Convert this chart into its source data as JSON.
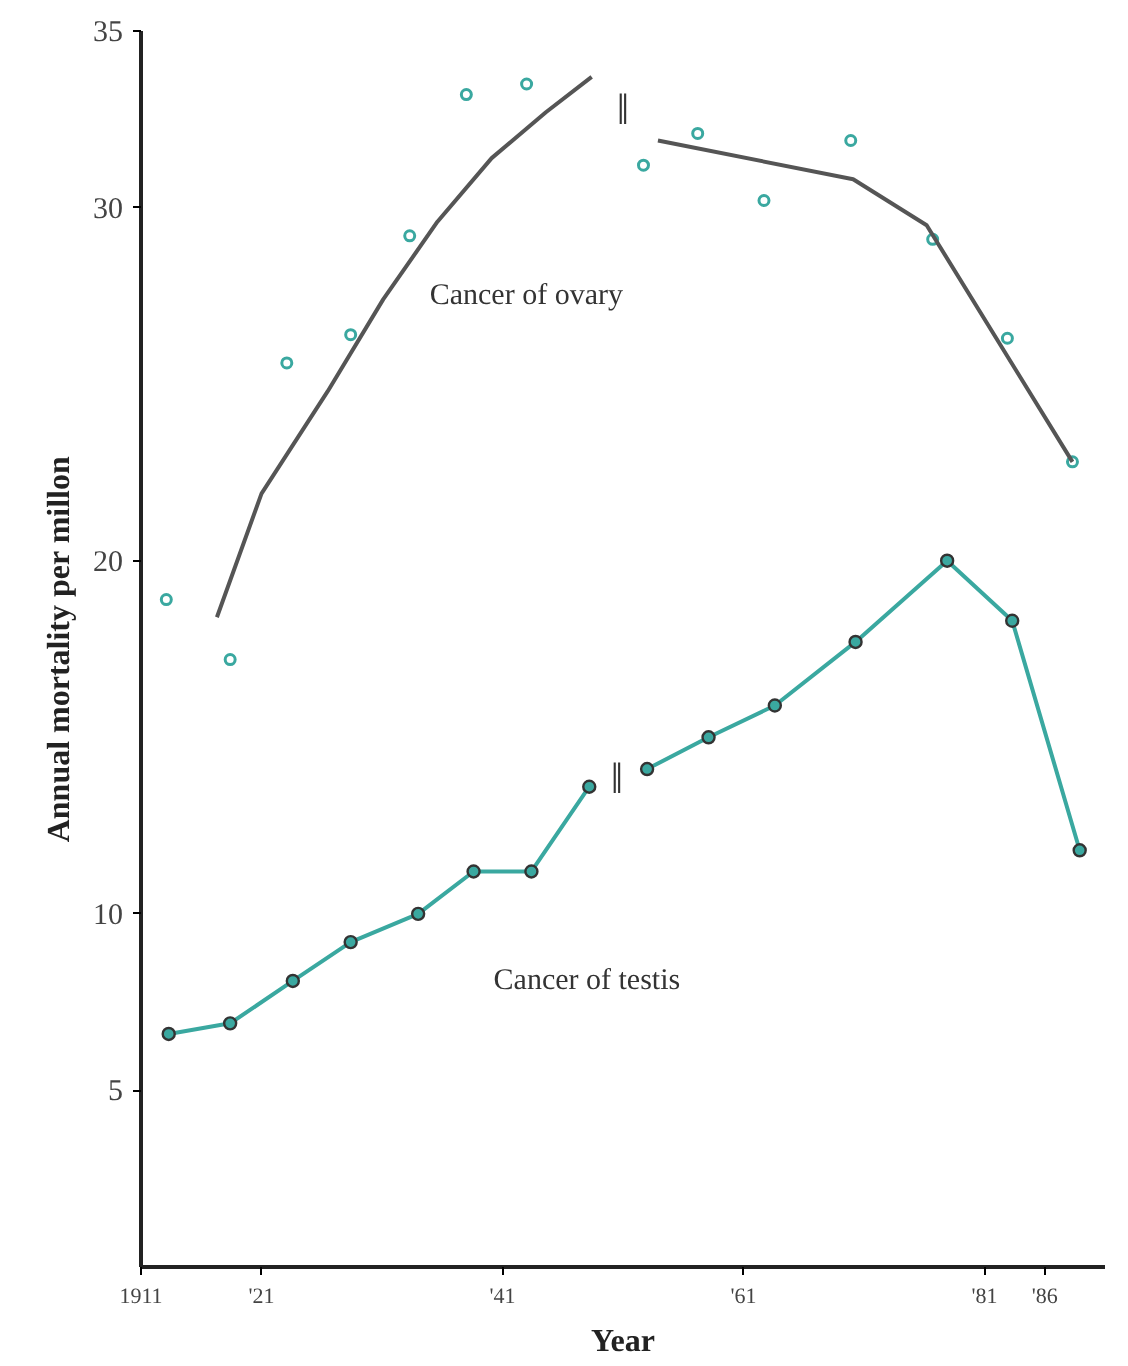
{
  "chart_data": {
    "type": "line",
    "xlabel": "Year",
    "ylabel": "Annual mortality per millon",
    "xlim": [
      1911,
      1991
    ],
    "ylim": [
      0,
      35
    ],
    "xticks": [
      {
        "value": 1911,
        "label": "1911"
      },
      {
        "value": 1921,
        "label": "'21"
      },
      {
        "value": 1941,
        "label": "'41"
      },
      {
        "value": 1961,
        "label": "'61"
      },
      {
        "value": 1981,
        "label": "'81"
      },
      {
        "value": 1986,
        "label": "'86"
      }
    ],
    "yticks": [
      5,
      10,
      20,
      30,
      35
    ],
    "grid": false,
    "line_style": "solid",
    "series": [
      {
        "type": "scatter",
        "name": "Cancer of ovary",
        "color": "#3aa8a0",
        "marker": "circle",
        "x": [
          1913.1,
          1918.4,
          1923.1,
          1928.4,
          1933.3,
          1938.0,
          1943.0,
          1952.7,
          1957.2,
          1962.7,
          1969.9,
          1976.7,
          1982.9,
          1988.3
        ],
        "values": [
          18.9,
          17.2,
          25.6,
          26.4,
          29.2,
          33.2,
          33.5,
          31.2,
          32.1,
          30.2,
          31.9,
          29.1,
          26.3,
          22.8
        ]
      },
      {
        "color": "#555555",
        "marker": "none",
        "x": [
          1917.3,
          1921.0,
          1926.5,
          1931.1,
          1935.6,
          1940.1,
          1944.6,
          1948.4,
          1951,
          1953.9,
          1970.1,
          1976.2,
          1988.3
        ],
        "values": [
          18.4,
          21.9,
          24.8,
          27.4,
          29.6,
          31.4,
          32.7,
          33.7,
          null,
          31.9,
          30.8,
          29.5,
          22.8
        ]
      },
      {
        "name": "Cancer of testis",
        "color": "#3aa8a0",
        "marker": "circle",
        "x": [
          1913.3,
          1918.4,
          1923.6,
          1928.4,
          1934.0,
          1938.6,
          1943.4,
          1948.2,
          1950.5,
          1953.0,
          1958.1,
          1963.6,
          1970.3,
          1977.9,
          1983.3,
          1988.9
        ],
        "values": [
          6.6,
          6.9,
          8.1,
          9.2,
          10.0,
          11.2,
          11.2,
          13.6,
          null,
          14.1,
          15.0,
          15.9,
          17.7,
          20.0,
          18.3,
          11.8
        ]
      }
    ],
    "annotations": [
      "‖",
      "‖"
    ]
  }
}
